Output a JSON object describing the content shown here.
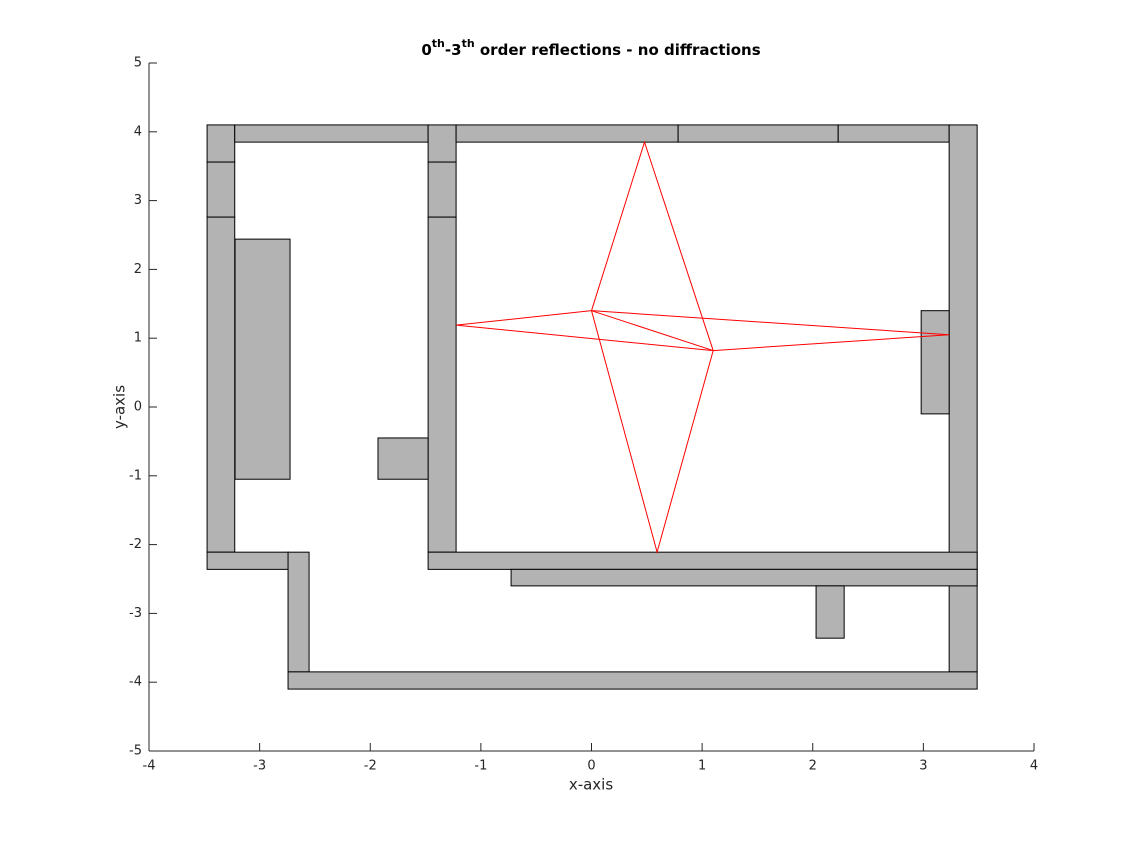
{
  "chart_data": {
    "type": "room-plot",
    "title": [
      {
        "text": "0"
      },
      {
        "text": "th",
        "sup": true
      },
      {
        "text": "-3"
      },
      {
        "text": "th",
        "sup": true
      },
      {
        "text": " order reflections - no diffractions"
      }
    ],
    "x_label": "x-axis",
    "y_label": "y-axis",
    "xlim": [
      -4,
      4
    ],
    "ylim": [
      -5,
      5
    ],
    "xticks": [
      -4,
      -3,
      -2,
      -1,
      0,
      1,
      2,
      3,
      4
    ],
    "yticks": [
      -5,
      -4,
      -3,
      -2,
      -1,
      0,
      1,
      2,
      3,
      4,
      5
    ],
    "wall_color": "#b3b3b3",
    "rectangles": [
      {
        "x": [
          -3.475,
          -3.225
        ],
        "y": [
          3.56,
          4.1
        ]
      },
      {
        "x": [
          -3.475,
          -3.225
        ],
        "y": [
          2.76,
          3.56
        ]
      },
      {
        "x": [
          -3.475,
          -3.225
        ],
        "y": [
          -2.11,
          2.76
        ]
      },
      {
        "x": [
          -3.475,
          -2.74
        ],
        "y": [
          -2.36,
          -2.11
        ]
      },
      {
        "x": [
          -3.225,
          -1.477
        ],
        "y": [
          3.85,
          4.1
        ]
      },
      {
        "x": [
          -1.477,
          -1.224
        ],
        "y": [
          3.56,
          4.1
        ]
      },
      {
        "x": [
          -1.477,
          -1.224
        ],
        "y": [
          2.76,
          3.56
        ]
      },
      {
        "x": [
          -1.477,
          -1.224
        ],
        "y": [
          -2.11,
          2.76
        ]
      },
      {
        "x": [
          -1.224,
          0.783
        ],
        "y": [
          3.85,
          4.1
        ]
      },
      {
        "x": [
          0.783,
          2.23
        ],
        "y": [
          3.85,
          4.1
        ]
      },
      {
        "x": [
          2.23,
          3.233
        ],
        "y": [
          3.85,
          4.1
        ]
      },
      {
        "x": [
          3.233,
          3.486
        ],
        "y": [
          -3.85,
          4.1
        ]
      },
      {
        "x": [
          -1.477,
          3.486
        ],
        "y": [
          -2.36,
          -2.11
        ]
      },
      {
        "x": [
          -0.727,
          3.486
        ],
        "y": [
          -2.6,
          -2.36
        ]
      },
      {
        "x": [
          2.03,
          2.284
        ],
        "y": [
          -3.36,
          -2.6
        ]
      },
      {
        "x": [
          -2.743,
          -2.553
        ],
        "y": [
          -3.85,
          -2.11
        ]
      },
      {
        "x": [
          -2.743,
          3.486
        ],
        "y": [
          -4.1,
          -3.85
        ]
      },
      {
        "x": [
          -3.222,
          -2.725
        ],
        "y": [
          -1.05,
          2.44
        ]
      },
      {
        "x": [
          -1.93,
          -1.477
        ],
        "y": [
          -1.05,
          -0.45
        ]
      },
      {
        "x": [
          2.98,
          3.233
        ],
        "y": [
          -0.1,
          1.4
        ]
      }
    ],
    "path_color": "#ff0000",
    "paths": [
      {
        "x": [
          0,
          1.1
        ],
        "y": [
          1.4,
          0.82
        ]
      },
      {
        "x": [
          0,
          0.479,
          1.1
        ],
        "y": [
          1.4,
          3.85,
          0.82
        ]
      },
      {
        "x": [
          0,
          0.593,
          1.1
        ],
        "y": [
          1.4,
          -2.11,
          0.82
        ]
      },
      {
        "x": [
          0,
          -1.224,
          1.1
        ],
        "y": [
          1.4,
          1.19,
          0.82
        ]
      },
      {
        "x": [
          0,
          3.233,
          1.1
        ],
        "y": [
          1.4,
          1.05,
          0.82
        ]
      }
    ]
  }
}
